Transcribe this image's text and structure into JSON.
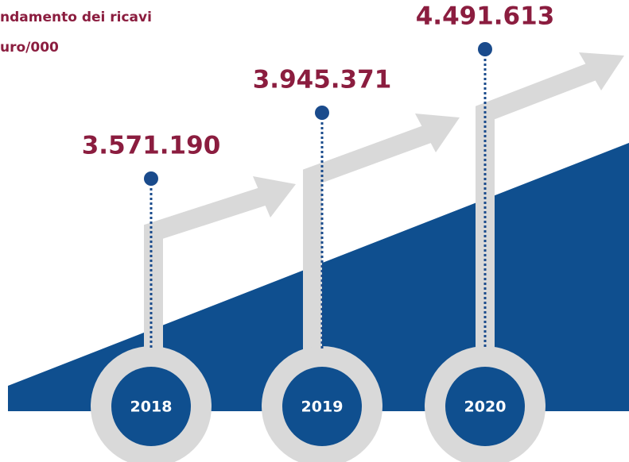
{
  "title": {
    "line1": "ndamento dei ricavi",
    "line2": "uro/000"
  },
  "items": [
    {
      "year": "2018",
      "value": "3.571.190"
    },
    {
      "year": "2019",
      "value": "3.945.371"
    },
    {
      "year": "2020",
      "value": "4.491.613"
    }
  ]
}
